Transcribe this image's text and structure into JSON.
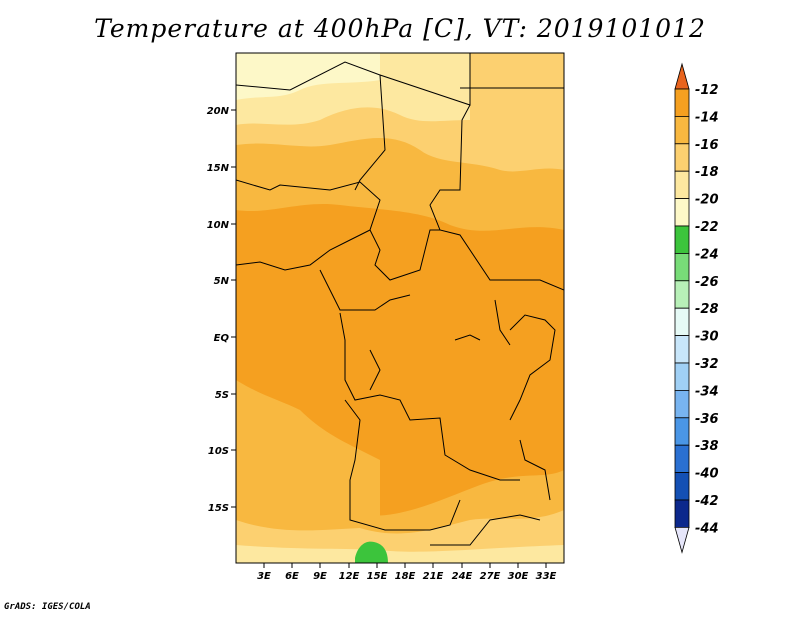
{
  "title": "Temperature at 400hPa [C], VT: 2019101012",
  "credit": "GrADS: IGES/COLA",
  "map": {
    "lat_labels": [
      "20N",
      "15N",
      "10N",
      "5N",
      "EQ",
      "5S",
      "10S",
      "15S"
    ],
    "lon_labels": [
      "3E",
      "6E",
      "9E",
      "12E",
      "15E",
      "18E",
      "21E",
      "24E",
      "27E",
      "30E",
      "33E"
    ],
    "colors": {
      "c_m12": "#e8641e",
      "c_m14": "#f5a020",
      "c_m16": "#f8b840",
      "c_m18": "#fcd070",
      "c_m20": "#fde8a0",
      "c_m22": "#fdf8c8",
      "c_m24": "#3cc43c",
      "border": "#000000"
    }
  },
  "colorbar": {
    "labels": [
      "-12",
      "-14",
      "-16",
      "-18",
      "-20",
      "-22",
      "-24",
      "-26",
      "-28",
      "-30",
      "-32",
      "-34",
      "-36",
      "-38",
      "-40",
      "-42",
      "-44"
    ],
    "colors": [
      "#e8641e",
      "#f5a020",
      "#f8b840",
      "#fcd070",
      "#fde8a0",
      "#fdf8c8",
      "#3cc43c",
      "#78dc78",
      "#b8f0b8",
      "#e6faf6",
      "#c8e6fa",
      "#a0d0f5",
      "#78b4f0",
      "#4a96e6",
      "#2a70d2",
      "#1450b4",
      "#0c288c",
      "#10106a",
      "#e6e6fa"
    ]
  }
}
